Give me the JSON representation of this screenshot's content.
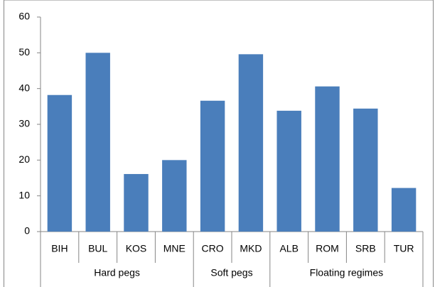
{
  "chart_data": {
    "type": "bar",
    "categories": [
      "BIH",
      "BUL",
      "KOS",
      "MNE",
      "CRO",
      "MKD",
      "ALB",
      "ROM",
      "SRB",
      "TUR"
    ],
    "values": [
      38.2,
      50,
      16.1,
      20,
      36.6,
      49.6,
      33.8,
      40.6,
      34.4,
      12.2
    ],
    "groups": [
      {
        "label": "Hard pegs",
        "size": 4
      },
      {
        "label": "Soft pegs",
        "size": 2
      },
      {
        "label": "Floating regimes",
        "size": 4
      }
    ],
    "color": "#4a7ebb",
    "ylim": [
      0,
      60
    ],
    "yticks": [
      0,
      10,
      20,
      30,
      40,
      50,
      60
    ],
    "grid": false
  }
}
